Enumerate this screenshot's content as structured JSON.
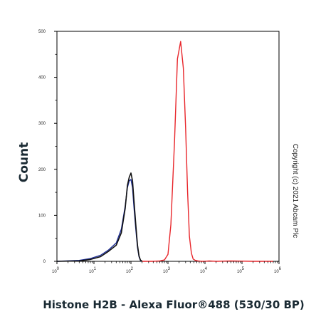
{
  "chart_data": {
    "type": "line",
    "title": "",
    "xlabel": "Histone H2B - Alexa Fluor®488 (530/30 BP)",
    "ylabel": "Count",
    "xscale": "log",
    "xlim": [
      1,
      1000000
    ],
    "ylim": [
      0,
      500
    ],
    "x_ticks": [
      {
        "value": 1,
        "base": "10",
        "exp": "0"
      },
      {
        "value": 10,
        "base": "10",
        "exp": "1"
      },
      {
        "value": 100,
        "base": "10",
        "exp": "2"
      },
      {
        "value": 1000,
        "base": "10",
        "exp": "3"
      },
      {
        "value": 10000,
        "base": "10",
        "exp": "4"
      },
      {
        "value": 100000,
        "base": "10",
        "exp": "5"
      },
      {
        "value": 1000000,
        "base": "10",
        "exp": "6"
      }
    ],
    "y_ticks": [
      "0",
      "100",
      "200",
      "300",
      "400",
      "500"
    ],
    "grid": false,
    "series": [
      {
        "color": "#e8262b",
        "x": [
          200,
          400,
          600,
          800,
          1000,
          1200,
          1500,
          1800,
          2200,
          2600,
          3000,
          3400,
          3800,
          4300,
          4800,
          5500,
          6500,
          8000,
          10000,
          13000,
          20000,
          50000,
          200000,
          700000
        ],
        "y": [
          0,
          0,
          1,
          3,
          15,
          80,
          260,
          440,
          478,
          420,
          290,
          150,
          55,
          18,
          5,
          2,
          1,
          0,
          0,
          1,
          0,
          1,
          0,
          0
        ]
      },
      {
        "color": "#1f2f96",
        "x": [
          1,
          4,
          8,
          15,
          25,
          40,
          55,
          70,
          80,
          90,
          100,
          110,
          120,
          135,
          150,
          165,
          180,
          200
        ],
        "y": [
          0,
          2,
          6,
          13,
          25,
          40,
          70,
          120,
          160,
          175,
          178,
          160,
          120,
          70,
          30,
          10,
          2,
          0
        ]
      },
      {
        "color": "#111111",
        "x": [
          1,
          4,
          8,
          15,
          25,
          40,
          55,
          70,
          80,
          90,
          100,
          110,
          120,
          135,
          150,
          165,
          180,
          200
        ],
        "y": [
          0,
          1,
          4,
          10,
          22,
          35,
          62,
          115,
          165,
          183,
          192,
          175,
          135,
          80,
          35,
          12,
          3,
          0
        ]
      }
    ]
  },
  "copyright": "Copyright (c) 2021 Abcam Plc"
}
